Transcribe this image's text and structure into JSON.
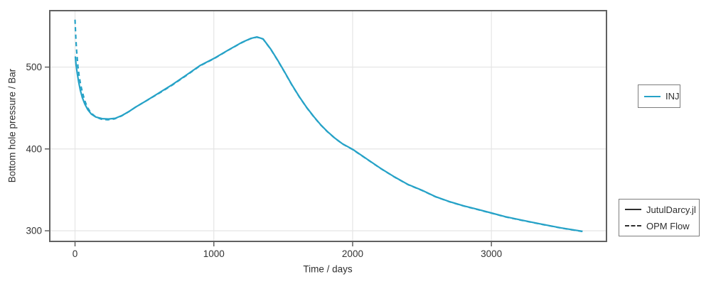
{
  "figure": {
    "background": "#ffffff"
  },
  "chart_data": {
    "type": "line",
    "title": "",
    "xlabel": "Time / days",
    "ylabel": "Bottom hole pressure / Bar",
    "xlim": [
      -182,
      3829
    ],
    "ylim": [
      287,
      569
    ],
    "xticks": [
      0,
      1000,
      2000,
      3000
    ],
    "yticks": [
      300,
      400,
      500
    ],
    "grid": true,
    "series": [
      {
        "name": "JutulDarcy.jl",
        "well": "INJ",
        "style": "solid",
        "color": "#26A2C7",
        "points": [
          [
            2,
            513
          ],
          [
            8,
            502
          ],
          [
            16,
            492
          ],
          [
            26,
            482
          ],
          [
            38,
            472
          ],
          [
            52,
            463
          ],
          [
            70,
            455
          ],
          [
            92,
            448
          ],
          [
            118,
            442.5
          ],
          [
            150,
            439
          ],
          [
            195,
            437
          ],
          [
            240,
            436.6
          ],
          [
            290,
            437.5
          ],
          [
            340,
            441
          ],
          [
            390,
            446
          ],
          [
            440,
            451.5
          ],
          [
            510,
            458.5
          ],
          [
            600,
            468
          ],
          [
            700,
            478.5
          ],
          [
            800,
            490
          ],
          [
            900,
            501.8
          ],
          [
            1000,
            510.5
          ],
          [
            1100,
            520.5
          ],
          [
            1200,
            530
          ],
          [
            1265,
            535
          ],
          [
            1310,
            536.8
          ],
          [
            1355,
            534.5
          ],
          [
            1410,
            522
          ],
          [
            1460,
            508.5
          ],
          [
            1510,
            494
          ],
          [
            1560,
            479
          ],
          [
            1615,
            464
          ],
          [
            1670,
            450.5
          ],
          [
            1720,
            439.5
          ],
          [
            1770,
            429.5
          ],
          [
            1820,
            421
          ],
          [
            1870,
            413.5
          ],
          [
            1925,
            406.5
          ],
          [
            2000,
            399.5
          ],
          [
            2100,
            388
          ],
          [
            2200,
            376.5
          ],
          [
            2300,
            366
          ],
          [
            2400,
            356.5
          ],
          [
            2500,
            349.5
          ],
          [
            2600,
            341.5
          ],
          [
            2700,
            335.5
          ],
          [
            2800,
            330.5
          ],
          [
            2900,
            326.2
          ],
          [
            3000,
            321.7
          ],
          [
            3100,
            317.2
          ],
          [
            3200,
            313.6
          ],
          [
            3300,
            310.2
          ],
          [
            3400,
            306.8
          ],
          [
            3500,
            303.6
          ],
          [
            3600,
            300.8
          ],
          [
            3657,
            299.3
          ]
        ]
      },
      {
        "name": "OPM Flow",
        "well": "INJ",
        "style": "dashed",
        "color": "#26A2C7",
        "points": [
          [
            0,
            558
          ],
          [
            3,
            546
          ],
          [
            6,
            535
          ],
          [
            10,
            523
          ],
          [
            15,
            512
          ],
          [
            21,
            501
          ],
          [
            29,
            490
          ],
          [
            40,
            479
          ],
          [
            52,
            470
          ],
          [
            68,
            460
          ],
          [
            88,
            451
          ],
          [
            115,
            444
          ],
          [
            150,
            439
          ],
          [
            190,
            436.3
          ],
          [
            235,
            435.6
          ],
          [
            285,
            436.8
          ],
          [
            335,
            440.3
          ],
          [
            385,
            445.3
          ],
          [
            435,
            451
          ],
          [
            505,
            458
          ],
          [
            600,
            467.5
          ],
          [
            700,
            478
          ],
          [
            800,
            489.5
          ],
          [
            900,
            501.5
          ],
          [
            1000,
            510.2
          ],
          [
            1100,
            520.3
          ],
          [
            1200,
            529.8
          ],
          [
            1265,
            534.8
          ],
          [
            1310,
            536.6
          ],
          [
            1355,
            534.3
          ],
          [
            1410,
            521.8
          ],
          [
            1460,
            508.3
          ],
          [
            1510,
            493.8
          ],
          [
            1560,
            478.8
          ],
          [
            1615,
            463.8
          ],
          [
            1670,
            450.3
          ],
          [
            1720,
            439.3
          ],
          [
            1770,
            429.3
          ],
          [
            1820,
            420.8
          ],
          [
            1870,
            413.3
          ],
          [
            1925,
            406.3
          ],
          [
            2000,
            399.3
          ],
          [
            2100,
            387.8
          ],
          [
            2200,
            376.3
          ],
          [
            2300,
            365.8
          ],
          [
            2400,
            356.3
          ],
          [
            2500,
            349.3
          ],
          [
            2600,
            341.3
          ],
          [
            2700,
            335.3
          ],
          [
            2800,
            330.3
          ],
          [
            2900,
            326
          ],
          [
            3000,
            321.5
          ],
          [
            3100,
            317
          ],
          [
            3200,
            313.4
          ],
          [
            3300,
            310
          ],
          [
            3400,
            306.6
          ],
          [
            3500,
            303.4
          ],
          [
            3600,
            300.6
          ],
          [
            3657,
            299.1
          ]
        ]
      }
    ],
    "legends": [
      {
        "name": "wells",
        "position": "right-top",
        "entries": [
          {
            "label": "INJ",
            "color": "#26A2C7",
            "style": "solid"
          }
        ]
      },
      {
        "name": "simulators",
        "position": "right-bottom",
        "entries": [
          {
            "label": "JutulDarcy.jl",
            "color": "#2e2e2e",
            "style": "solid"
          },
          {
            "label": "OPM Flow",
            "color": "#2e2e2e",
            "style": "dashed"
          }
        ]
      }
    ]
  },
  "colors": {
    "grid": "#e5e5e5",
    "spine": "#616161",
    "tick": "#616161",
    "tick_text": "#333333",
    "legend_border": "#7d7d7d"
  }
}
